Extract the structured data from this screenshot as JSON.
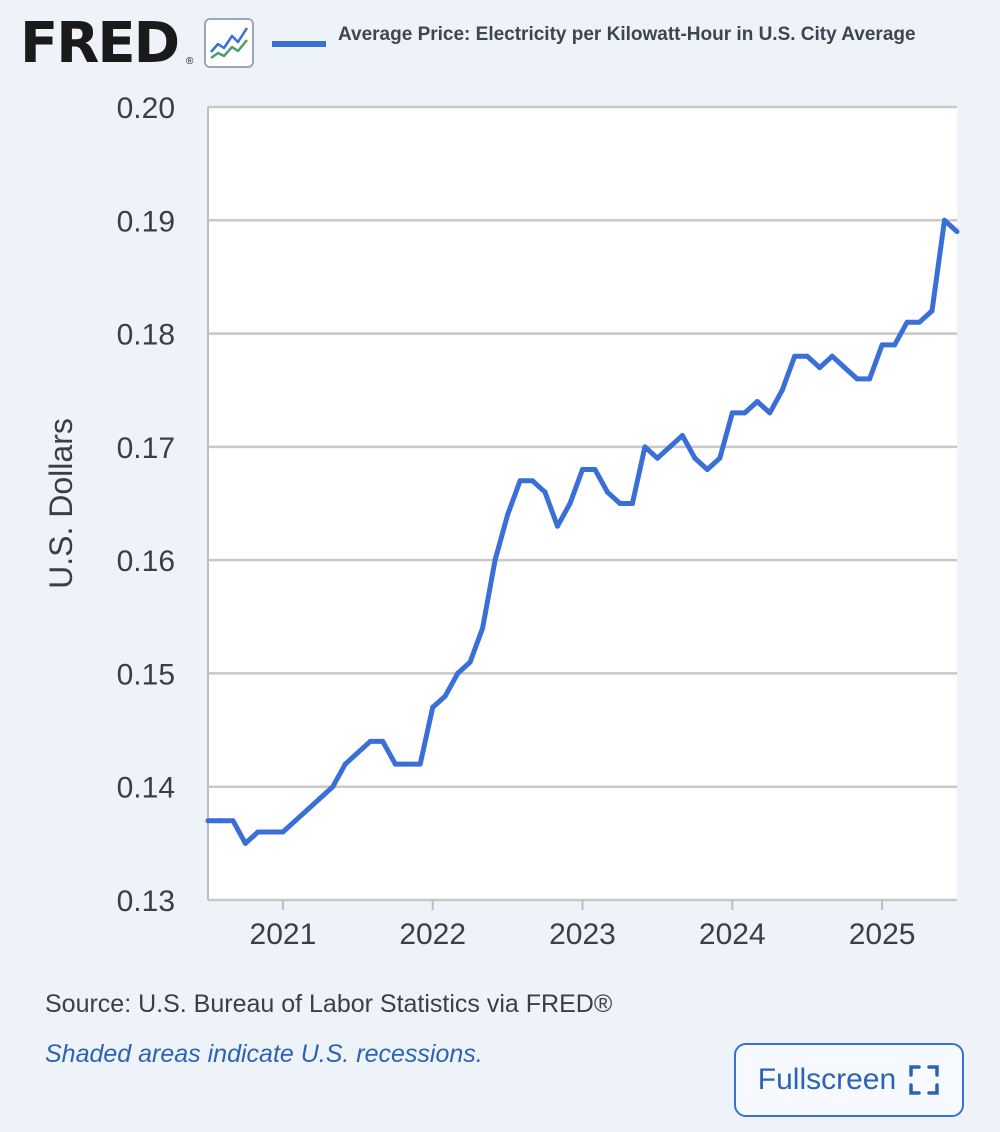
{
  "header": {
    "logo_text": "FRED",
    "logo_reg": "®",
    "logo_icon": "line-graph-icon",
    "series_label": "Average Price: Electricity per Kilowatt-Hour in U.S. City Average"
  },
  "footer": {
    "source": "Source: U.S. Bureau of Labor Statistics via FRED®",
    "recession_note": "Shaded areas indicate U.S. recessions.",
    "fullscreen_label": "Fullscreen",
    "fullscreen_icon": "expand-icon"
  },
  "colors": {
    "line": "#3a6fd8",
    "background": "#eef3fa",
    "plot_background": "#ffffff",
    "grid": "#c8c8c8"
  },
  "chart_data": {
    "type": "line",
    "title": "",
    "xlabel": "",
    "ylabel": "U.S. Dollars",
    "ylim": [
      0.13,
      0.2
    ],
    "xlim": [
      "2020-07",
      "2025-07"
    ],
    "yticks": [
      "0.13",
      "0.14",
      "0.15",
      "0.16",
      "0.17",
      "0.18",
      "0.19",
      "0.20"
    ],
    "xticks": [
      "2021",
      "2022",
      "2023",
      "2024",
      "2025"
    ],
    "grid": true,
    "series": [
      {
        "name": "Average Price: Electricity per Kilowatt-Hour in U.S. City Average",
        "x": [
          "2020-07",
          "2020-08",
          "2020-09",
          "2020-10",
          "2020-11",
          "2020-12",
          "2021-01",
          "2021-02",
          "2021-03",
          "2021-04",
          "2021-05",
          "2021-06",
          "2021-07",
          "2021-08",
          "2021-09",
          "2021-10",
          "2021-11",
          "2021-12",
          "2022-01",
          "2022-02",
          "2022-03",
          "2022-04",
          "2022-05",
          "2022-06",
          "2022-07",
          "2022-08",
          "2022-09",
          "2022-10",
          "2022-11",
          "2022-12",
          "2023-01",
          "2023-02",
          "2023-03",
          "2023-04",
          "2023-05",
          "2023-06",
          "2023-07",
          "2023-08",
          "2023-09",
          "2023-10",
          "2023-11",
          "2023-12",
          "2024-01",
          "2024-02",
          "2024-03",
          "2024-04",
          "2024-05",
          "2024-06",
          "2024-07",
          "2024-08",
          "2024-09",
          "2024-10",
          "2024-11",
          "2024-12",
          "2025-01",
          "2025-02",
          "2025-03",
          "2025-04",
          "2025-05",
          "2025-06",
          "2025-07"
        ],
        "values": [
          0.137,
          0.137,
          0.137,
          0.135,
          0.136,
          0.136,
          0.136,
          0.137,
          0.138,
          0.139,
          0.14,
          0.142,
          0.143,
          0.144,
          0.144,
          0.142,
          0.142,
          0.142,
          0.147,
          0.148,
          0.15,
          0.151,
          0.154,
          0.16,
          0.164,
          0.167,
          0.167,
          0.166,
          0.163,
          0.165,
          0.168,
          0.168,
          0.166,
          0.165,
          0.165,
          0.17,
          0.169,
          0.17,
          0.171,
          0.169,
          0.168,
          0.169,
          0.173,
          0.173,
          0.174,
          0.173,
          0.175,
          0.178,
          0.178,
          0.177,
          0.178,
          0.177,
          0.176,
          0.176,
          0.179,
          0.179,
          0.181,
          0.181,
          0.182,
          0.19,
          0.189
        ]
      }
    ]
  }
}
